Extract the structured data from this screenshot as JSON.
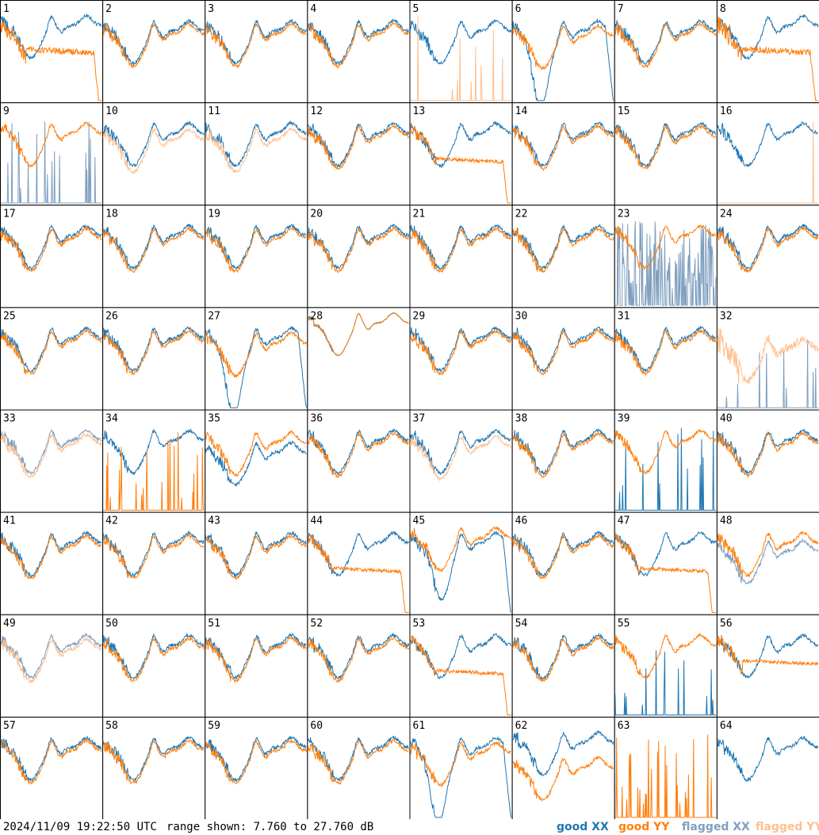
{
  "chart_data": {
    "type": "line",
    "panel_count": 64,
    "panel_labels": [
      "1",
      "2",
      "3",
      "4",
      "5",
      "6",
      "7",
      "8",
      "9",
      "10",
      "11",
      "12",
      "13",
      "14",
      "15",
      "16",
      "17",
      "18",
      "19",
      "20",
      "21",
      "22",
      "23",
      "24",
      "25",
      "26",
      "27",
      "28",
      "29",
      "30",
      "31",
      "32",
      "33",
      "34",
      "35",
      "36",
      "37",
      "38",
      "39",
      "40",
      "41",
      "42",
      "43",
      "44",
      "45",
      "46",
      "47",
      "48",
      "49",
      "50",
      "51",
      "52",
      "53",
      "54",
      "55",
      "56",
      "57",
      "58",
      "59",
      "60",
      "61",
      "62",
      "63",
      "64"
    ],
    "range_db": [
      7.76,
      27.76
    ],
    "series": [
      {
        "name": "good XX",
        "color": "#1f77b4"
      },
      {
        "name": "good YY",
        "color": "#ff7f0e"
      },
      {
        "name": "flagged XX",
        "color": "#7f9fbf"
      },
      {
        "name": "flagged YY",
        "color": "#ffbf8f"
      }
    ],
    "panel_modes": {
      "1": "x_high_y_low_bursty",
      "5": "y_spikes",
      "6": "x_dip_big",
      "8": "x_high_y_low_bursty",
      "9": "flag_x_spikes",
      "10": "flagged_y",
      "11": "flagged_y",
      "13": "y_low_right_drop",
      "16": "y_spike_single",
      "23": "flag_x_noisy",
      "27": "x_dip_big",
      "28": "flat_high",
      "32": "flagged_y_with_x_spikes",
      "33": "flagged_both",
      "34": "y_spikes_heavy",
      "35": "x_lower",
      "37": "flagged_y",
      "39": "x_spikes_y_good",
      "44": "y_low_right_drop",
      "45": "y_high_x_dip",
      "47": "y_low_right_drop",
      "48": "flag_x_good_y",
      "49": "flagged_both",
      "53": "y_low_right_drop",
      "55": "x_spikes_y_good",
      "56": "y_low_flat",
      "61": "x_dip_big",
      "62": "x_high_y_low",
      "63": "y_spikes_only",
      "64": "x_only"
    }
  },
  "footer": {
    "timestamp": "2024/11/09 19:22:50 UTC",
    "range_text": "range shown: 7.760 to 27.760 dB"
  },
  "legend": {
    "good_xx": "good XX",
    "good_yy": "good YY",
    "flagged_xx": "flagged XX",
    "flagged_yy": "flagged YY"
  },
  "colors": {
    "good_xx": "#1f77b4",
    "good_yy": "#ff7f0e",
    "flagged_xx": "#7f9fbf",
    "flagged_yy": "#ffbf8f"
  }
}
